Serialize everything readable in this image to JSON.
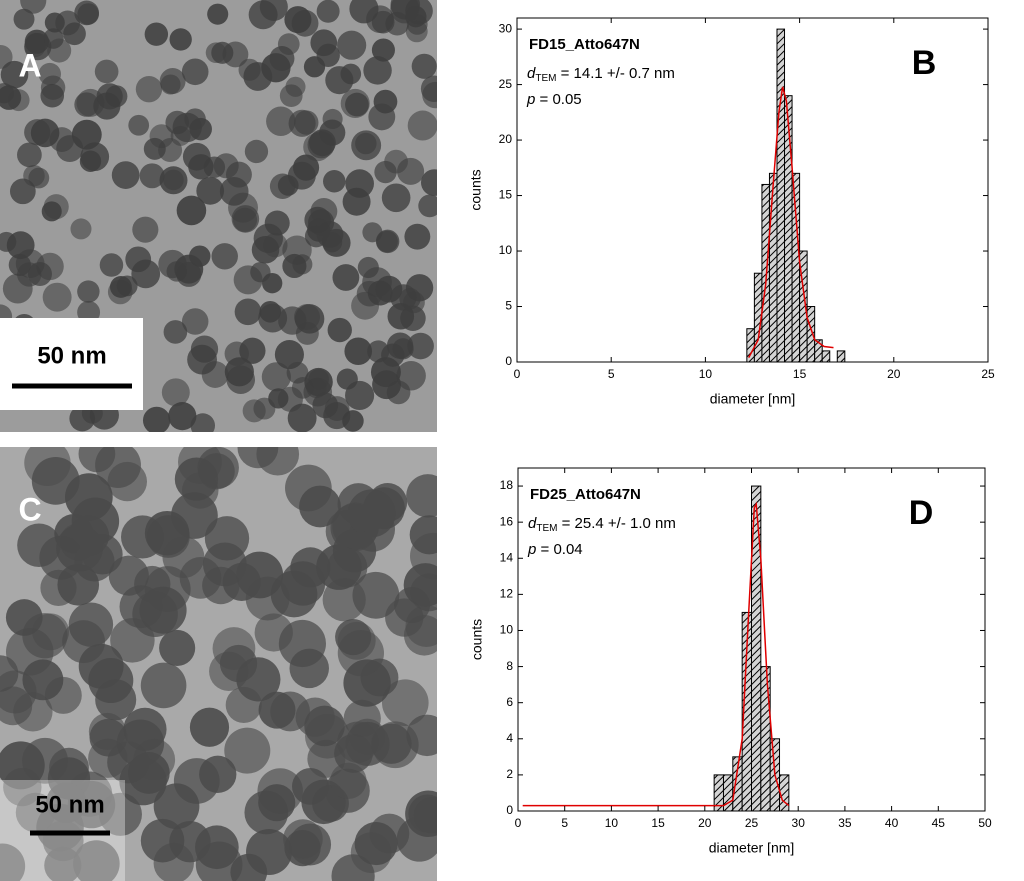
{
  "images": [
    {
      "label": "A",
      "scale_bar": "50 nm"
    },
    {
      "label": "C",
      "scale_bar": "50 nm"
    }
  ],
  "chart_data": [
    {
      "type": "histogram",
      "panel_label": "B",
      "x_label": "diameter [nm]",
      "y_label": "counts",
      "annotation": {
        "sample": "FD15_Atto647N",
        "d_symbol": "d",
        "d_subscript": "TEM",
        "d_text": " = 14.1 +/- 0.7 nm",
        "p_symbol": "p",
        "p_text": " = 0.05"
      },
      "bins": [
        12.2,
        12.6,
        13.0,
        13.4,
        13.8,
        14.2,
        14.6,
        15.0,
        15.4,
        15.8,
        16.2,
        16.6,
        17.0,
        17.4
      ],
      "values": [
        3,
        8,
        16,
        17,
        30,
        24,
        17,
        10,
        5,
        2,
        1,
        0,
        1
      ],
      "color": "#d4d4d4",
      "fit": {
        "color": "#e00000",
        "x": [
          12.3,
          12.8,
          13.2,
          13.6,
          13.9,
          14.1,
          14.3,
          14.6,
          15.0,
          15.4,
          15.8,
          16.3,
          16.8
        ],
        "y": [
          0.4,
          2,
          7,
          16,
          22.5,
          24.8,
          23.5,
          17.5,
          9,
          4,
          2,
          1.4,
          1.3
        ]
      },
      "xlim": [
        0,
        25
      ],
      "xticks": [
        0,
        5,
        10,
        15,
        20,
        25
      ],
      "ylim": [
        0,
        31
      ],
      "yticks": [
        0,
        5,
        10,
        15,
        20,
        25,
        30
      ]
    },
    {
      "type": "histogram",
      "panel_label": "D",
      "x_label": "diameter [nm]",
      "y_label": "counts",
      "annotation": {
        "sample": "FD25_Atto647N",
        "d_symbol": "d",
        "d_subscript": "TEM",
        "d_text": " = 25.4 +/- 1.0 nm",
        "p_symbol": "p",
        "p_text": " = 0.04"
      },
      "bins": [
        21,
        22,
        23,
        24,
        25,
        26,
        27,
        28,
        29
      ],
      "values": [
        2,
        2,
        3,
        11,
        18,
        8,
        4,
        2
      ],
      "color": "#d4d4d4",
      "fit": {
        "color": "#e00000",
        "x": [
          0.5,
          22,
          23,
          24,
          24.7,
          25.3,
          25.5,
          26,
          26.7,
          27.5,
          28.3,
          29
        ],
        "y": [
          0.3,
          0.3,
          0.6,
          4,
          11,
          16.8,
          17,
          14,
          7,
          2,
          0.6,
          0.3
        ]
      },
      "xlim": [
        0,
        50
      ],
      "xticks": [
        0,
        5,
        10,
        15,
        20,
        25,
        30,
        35,
        40,
        45,
        50
      ],
      "ylim": [
        0,
        19
      ],
      "yticks": [
        0,
        2,
        4,
        6,
        8,
        10,
        12,
        14,
        16,
        18
      ]
    }
  ]
}
